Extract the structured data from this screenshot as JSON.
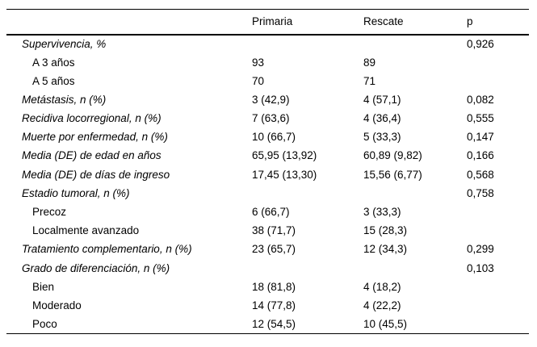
{
  "table": {
    "columns": [
      "",
      "Primaria",
      "Rescate",
      "p"
    ],
    "rows": [
      {
        "label": "Supervivencia, %",
        "italic": true,
        "indent": false,
        "primaria": "",
        "rescate": "",
        "p": "0,926"
      },
      {
        "label": "A 3 años",
        "italic": false,
        "indent": true,
        "primaria": "93",
        "rescate": "89",
        "p": ""
      },
      {
        "label": "A 5 años",
        "italic": false,
        "indent": true,
        "primaria": "70",
        "rescate": "71",
        "p": ""
      },
      {
        "label": "Metástasis, n (%)",
        "italic": true,
        "indent": false,
        "primaria": "3 (42,9)",
        "rescate": "4 (57,1)",
        "p": "0,082"
      },
      {
        "label": "Recidiva locorregional, n (%)",
        "italic": true,
        "indent": false,
        "primaria": "7 (63,6)",
        "rescate": "4 (36,4)",
        "p": "0,555"
      },
      {
        "label": "Muerte por enfermedad, n (%)",
        "italic": true,
        "indent": false,
        "primaria": "10 (66,7)",
        "rescate": "5 (33,3)",
        "p": "0,147"
      },
      {
        "label": "Media (DE) de edad en años",
        "italic": true,
        "indent": false,
        "primaria": "65,95 (13,92)",
        "rescate": "60,89 (9,82)",
        "p": "0,166"
      },
      {
        "label": "Media (DE) de días de ingreso",
        "italic": true,
        "indent": false,
        "primaria": "17,45 (13,30)",
        "rescate": "15,56 (6,77)",
        "p": "0,568"
      },
      {
        "label": "Estadio tumoral, n (%)",
        "italic": true,
        "indent": false,
        "primaria": "",
        "rescate": "",
        "p": "0,758"
      },
      {
        "label": "Precoz",
        "italic": false,
        "indent": true,
        "primaria": "6 (66,7)",
        "rescate": "3 (33,3)",
        "p": ""
      },
      {
        "label": "Localmente avanzado",
        "italic": false,
        "indent": true,
        "primaria": "38 (71,7)",
        "rescate": "15 (28,3)",
        "p": ""
      },
      {
        "label": "Tratamiento complementario, n (%)",
        "italic": true,
        "indent": false,
        "primaria": "23 (65,7)",
        "rescate": "12 (34,3)",
        "p": "0,299"
      },
      {
        "label": "Grado de diferenciación, n (%)",
        "italic": true,
        "indent": false,
        "primaria": "",
        "rescate": "",
        "p": "0,103"
      },
      {
        "label": "Bien",
        "italic": false,
        "indent": true,
        "primaria": "18 (81,8)",
        "rescate": "4 (18,2)",
        "p": ""
      },
      {
        "label": "Moderado",
        "italic": false,
        "indent": true,
        "primaria": "14 (77,8)",
        "rescate": "4 (22,2)",
        "p": ""
      },
      {
        "label": "Poco",
        "italic": false,
        "indent": true,
        "primaria": "12 (54,5)",
        "rescate": "10 (45,5)",
        "p": ""
      }
    ]
  }
}
